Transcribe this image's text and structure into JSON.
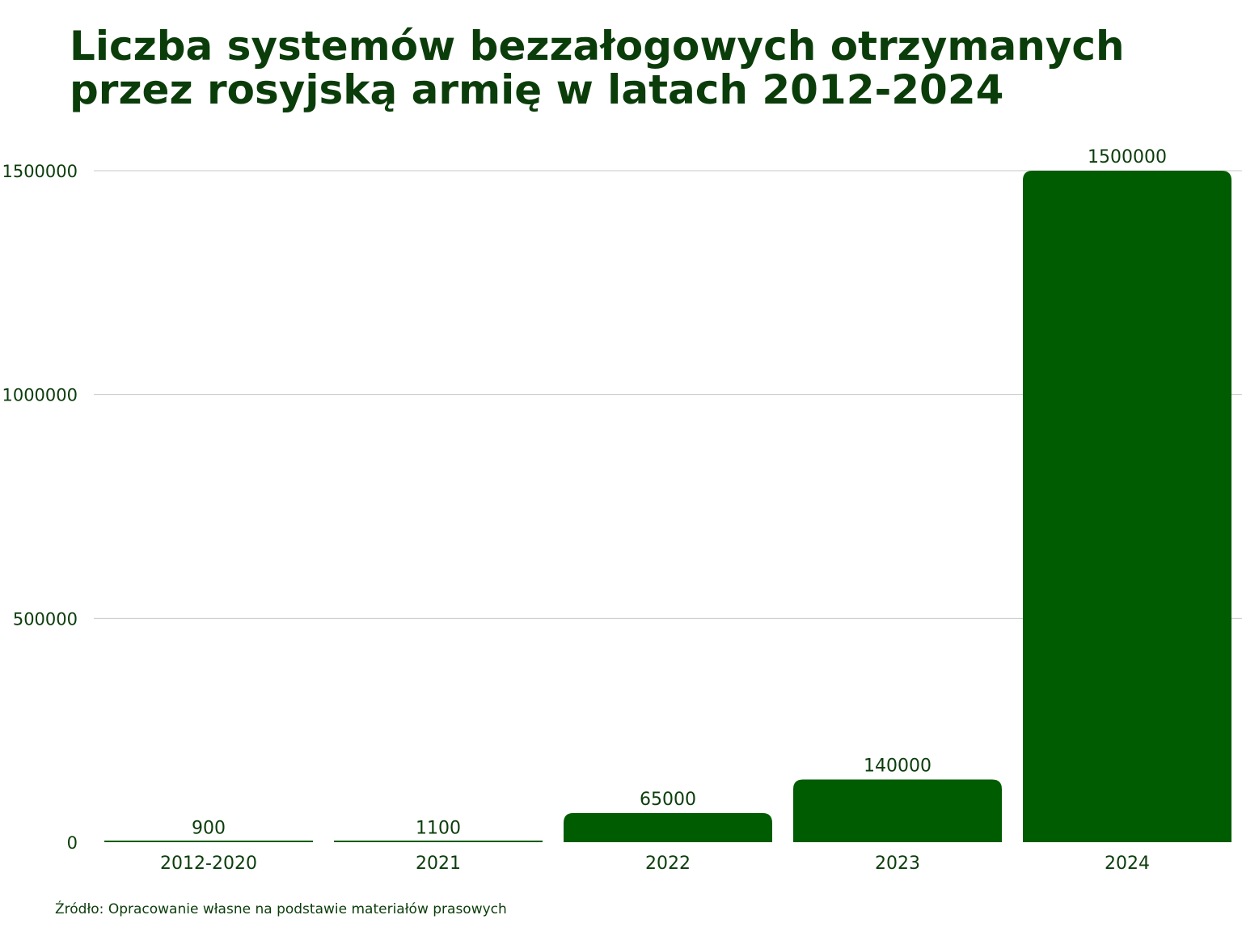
{
  "chart_data": {
    "type": "bar",
    "title_lines": [
      "Liczba systemów bezzałogowych otrzymanych",
      "przez rosyjską armię w latach 2012-2024"
    ],
    "categories": [
      "2012-2020",
      "2021",
      "2022",
      "2023",
      "2024"
    ],
    "values": [
      900,
      1100,
      65000,
      140000,
      1500000
    ],
    "data_labels": [
      "900",
      "1100",
      "65000",
      "140000",
      "1500000"
    ],
    "yticks": [
      0,
      500000,
      1000000,
      1500000
    ],
    "ytick_labels": [
      "0",
      "500000",
      "1000000",
      "1500000"
    ],
    "ylim": [
      0,
      1500000
    ],
    "xlabel": "",
    "ylabel": "",
    "grid": true,
    "legend": "none",
    "bar_color": "#005c00",
    "text_color": "#0b3d0b",
    "grid_color": "#c8c8c8"
  },
  "source_note": "Źródło: Opracowanie własne na podstawie materiałów prasowych"
}
